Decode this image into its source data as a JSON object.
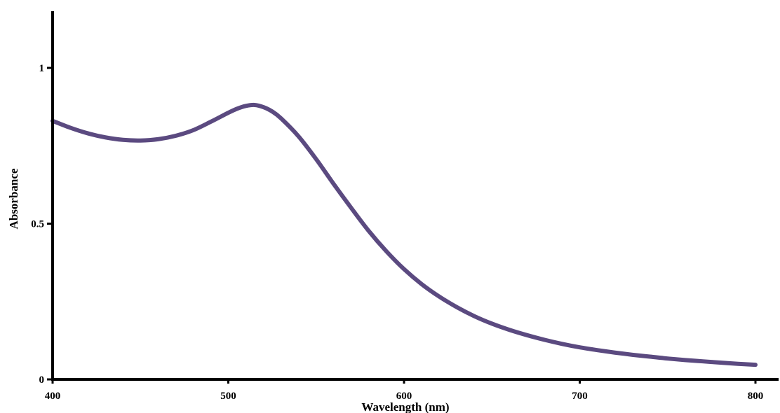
{
  "chart_data": {
    "type": "line",
    "title": "",
    "xlabel": "Wavelength (nm)",
    "ylabel": "Absorbance",
    "xlim": [
      400,
      800
    ],
    "ylim": [
      0,
      1.16
    ],
    "x_ticks": [
      400,
      500,
      600,
      700,
      800
    ],
    "x_tick_labels": [
      "400",
      "500",
      "600",
      "700",
      "800"
    ],
    "y_ticks": [
      0,
      0.5,
      1
    ],
    "y_tick_labels": [
      "0",
      "0.5",
      "1"
    ],
    "grid": false,
    "legend": "none",
    "colors": {
      "line": "#5b4a80",
      "axis": "#000000"
    },
    "series": [
      {
        "x": [
          400,
          410,
          420,
          430,
          440,
          450,
          460,
          470,
          480,
          490,
          500,
          505,
          510,
          515,
          520,
          525,
          530,
          540,
          550,
          560,
          570,
          580,
          590,
          600,
          610,
          620,
          630,
          640,
          650,
          660,
          670,
          680,
          690,
          700,
          710,
          720,
          730,
          740,
          750,
          760,
          770,
          780,
          790,
          800
        ],
        "y": [
          0.83,
          0.808,
          0.79,
          0.777,
          0.769,
          0.767,
          0.771,
          0.782,
          0.8,
          0.827,
          0.856,
          0.869,
          0.878,
          0.881,
          0.874,
          0.86,
          0.838,
          0.78,
          0.707,
          0.627,
          0.55,
          0.476,
          0.411,
          0.354,
          0.306,
          0.266,
          0.232,
          0.203,
          0.179,
          0.159,
          0.142,
          0.127,
          0.114,
          0.103,
          0.094,
          0.086,
          0.079,
          0.073,
          0.067,
          0.062,
          0.058,
          0.054,
          0.05,
          0.047
        ]
      }
    ]
  }
}
